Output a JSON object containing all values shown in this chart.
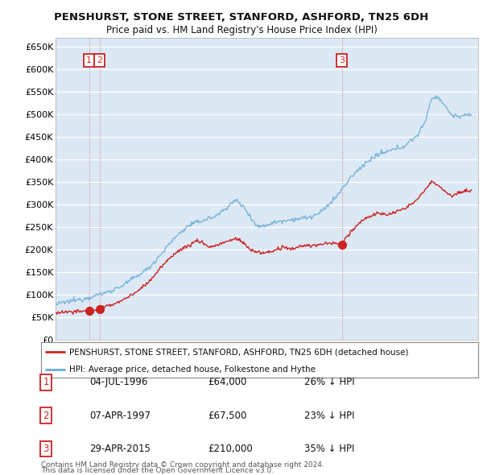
{
  "title": "PENSHURST, STONE STREET, STANFORD, ASHFORD, TN25 6DH",
  "subtitle": "Price paid vs. HM Land Registry's House Price Index (HPI)",
  "ylim": [
    0,
    670000
  ],
  "yticks": [
    0,
    50000,
    100000,
    150000,
    200000,
    250000,
    300000,
    350000,
    400000,
    450000,
    500000,
    550000,
    600000,
    650000
  ],
  "ytick_labels": [
    "£0",
    "£50K",
    "£100K",
    "£150K",
    "£200K",
    "£250K",
    "£300K",
    "£350K",
    "£400K",
    "£450K",
    "£500K",
    "£550K",
    "£600K",
    "£650K"
  ],
  "xlim_start": 1994.0,
  "xlim_end": 2025.5,
  "hpi_color": "#6aaad4",
  "sold_color": "#cc2222",
  "background_color": "#ffffff",
  "plot_bg_color": "#dce9f5",
  "grid_color": "#ffffff",
  "legend_line_sold": "PENSHURST, STONE STREET, STANFORD, ASHFORD, TN25 6DH (detached house)",
  "legend_line_hpi": "HPI: Average price, detached house, Folkestone and Hythe",
  "sales": [
    {
      "label": "1",
      "date": 1996.5,
      "price": 64000,
      "text_date": "04-JUL-1996",
      "text_price": "£64,000",
      "text_hpi": "26% ↓ HPI"
    },
    {
      "label": "2",
      "date": 1997.27,
      "price": 67500,
      "text_date": "07-APR-1997",
      "text_price": "£67,500",
      "text_hpi": "23% ↓ HPI"
    },
    {
      "label": "3",
      "date": 2015.33,
      "price": 210000,
      "text_date": "29-APR-2015",
      "text_price": "£210,000",
      "text_hpi": "35% ↓ HPI"
    }
  ],
  "footnote1": "Contains HM Land Registry data © Crown copyright and database right 2024.",
  "footnote2": "This data is licensed under the Open Government Licence v3.0."
}
